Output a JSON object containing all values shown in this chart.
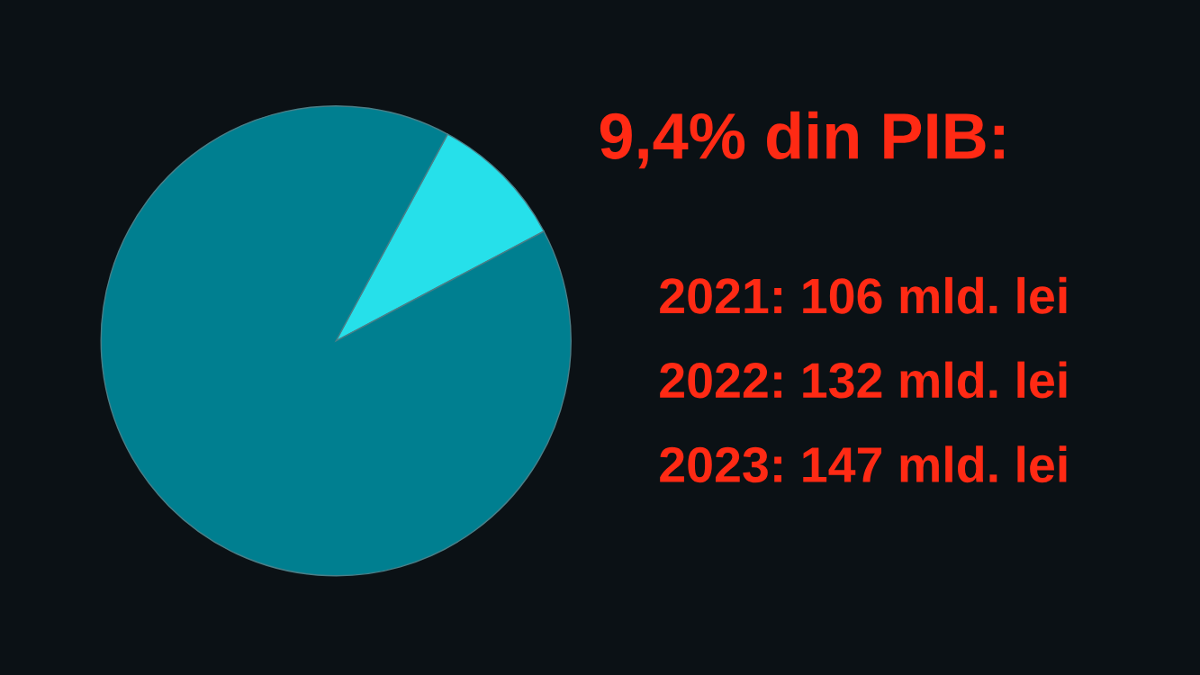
{
  "chart_data": {
    "type": "pie",
    "title": "9,4% din PIB:",
    "categories": [
      null,
      null
    ],
    "values": [
      9.4,
      90.6
    ],
    "colors": [
      "#26e0ea",
      "#007f90"
    ],
    "annotations": [
      "2021: 106 mld. lei",
      "2022: 132 mld. lei",
      "2023: 147 mld. lei"
    ]
  }
}
